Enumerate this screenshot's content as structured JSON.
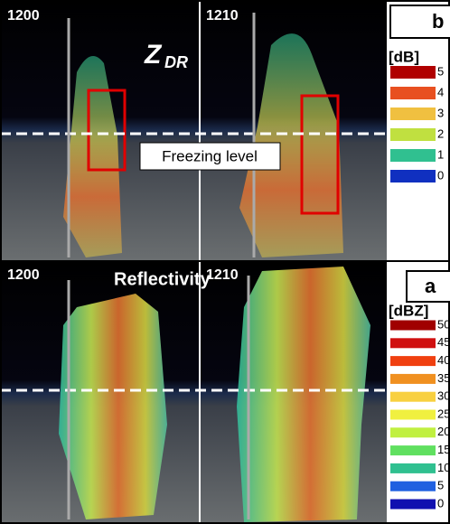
{
  "panels": [
    {
      "letter": "b",
      "times": [
        "1200",
        "1210"
      ],
      "variable": {
        "main": "Z",
        "sub": "DR"
      },
      "annotation": "Freezing level",
      "legend": {
        "unit": "[dB]",
        "items": [
          {
            "label": "5",
            "color": "#b00000"
          },
          {
            "label": "4",
            "color": "#e85020"
          },
          {
            "label": "3",
            "color": "#f0c040"
          },
          {
            "label": "2",
            "color": "#c0e040"
          },
          {
            "label": "1",
            "color": "#30c090"
          },
          {
            "label": "0",
            "color": "#1030c0"
          }
        ]
      }
    },
    {
      "letter": "a",
      "times": [
        "1200",
        "1210"
      ],
      "variable": {
        "main": "Reflectivity"
      },
      "legend": {
        "unit": "[dBZ]",
        "items": [
          {
            "label": "50",
            "color": "#a00000"
          },
          {
            "label": "45",
            "color": "#d01010"
          },
          {
            "label": "40",
            "color": "#f04010"
          },
          {
            "label": "35",
            "color": "#f09020"
          },
          {
            "label": "30",
            "color": "#f8d040"
          },
          {
            "label": "25",
            "color": "#f0f040"
          },
          {
            "label": "20",
            "color": "#c0f040"
          },
          {
            "label": "15",
            "color": "#60e060"
          },
          {
            "label": "10",
            "color": "#30c090"
          },
          {
            "label": "5",
            "color": "#2060e0"
          },
          {
            "label": "0",
            "color": "#1010b0"
          }
        ]
      }
    }
  ]
}
